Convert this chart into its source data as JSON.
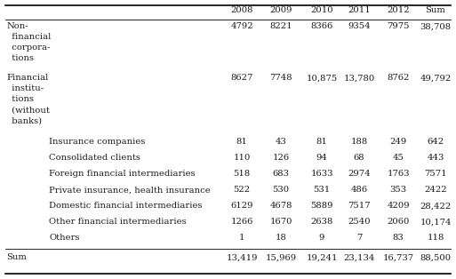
{
  "columns": [
    "2008",
    "2009",
    "2010",
    "2011",
    "2012",
    "Sum"
  ],
  "rows": [
    {
      "label_lines": [
        "Non-",
        "  financial",
        "  corpora-",
        "  tions"
      ],
      "indent": 0,
      "values": [
        "4792",
        "8221",
        "8366",
        "9354",
        "7975",
        "38,708"
      ],
      "val_row": 0
    },
    {
      "label_lines": [
        "Financial",
        "  institu-",
        "  tions",
        "  (without",
        "  banks)"
      ],
      "indent": 0,
      "values": [
        "8627",
        "7748",
        "10,875",
        "13,780",
        "8762",
        "49,792"
      ],
      "val_row": 0
    },
    {
      "label_lines": [
        "    Insurance companies"
      ],
      "indent": 1,
      "values": [
        "81",
        "43",
        "81",
        "188",
        "249",
        "642"
      ],
      "val_row": 0
    },
    {
      "label_lines": [
        "    Consolidated clients"
      ],
      "indent": 1,
      "values": [
        "110",
        "126",
        "94",
        "68",
        "45",
        "443"
      ],
      "val_row": 0
    },
    {
      "label_lines": [
        "    Foreign financial intermediaries"
      ],
      "indent": 1,
      "values": [
        "518",
        "683",
        "1633",
        "2974",
        "1763",
        "7571"
      ],
      "val_row": 0
    },
    {
      "label_lines": [
        "    Private insurance, health insurance"
      ],
      "indent": 1,
      "values": [
        "522",
        "530",
        "531",
        "486",
        "353",
        "2422"
      ],
      "val_row": 0
    },
    {
      "label_lines": [
        "    Domestic financial intermediaries"
      ],
      "indent": 1,
      "values": [
        "6129",
        "4678",
        "5889",
        "7517",
        "4209",
        "28,422"
      ],
      "val_row": 0
    },
    {
      "label_lines": [
        "    Other financial intermediaries"
      ],
      "indent": 1,
      "values": [
        "1266",
        "1670",
        "2638",
        "2540",
        "2060",
        "10,174"
      ],
      "val_row": 0
    },
    {
      "label_lines": [
        "    Others"
      ],
      "indent": 1,
      "values": [
        "1",
        "18",
        "9",
        "7",
        "83",
        "118"
      ],
      "val_row": 0
    },
    {
      "label_lines": [
        "Sum"
      ],
      "indent": 0,
      "values": [
        "13,419",
        "15,969",
        "19,241",
        "23,134",
        "16,737",
        "88,500"
      ],
      "val_row": 0
    }
  ],
  "bg_color": "#ffffff",
  "text_color": "#1a1a1a",
  "font_size": 7.2,
  "header_font_size": 7.2
}
